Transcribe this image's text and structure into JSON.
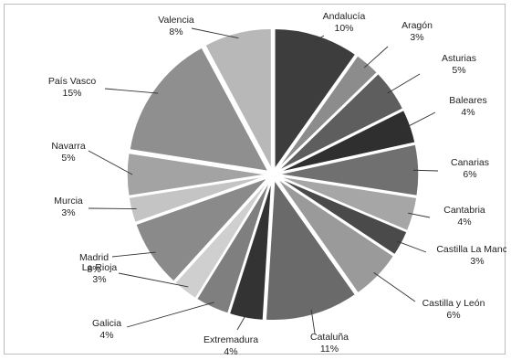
{
  "chart_data": {
    "type": "pie",
    "title": "",
    "slices": [
      {
        "label": "Andalucía",
        "value": 10,
        "display": "10%",
        "color": "#3d3d3d"
      },
      {
        "label": "Aragón",
        "value": 3,
        "display": "3%",
        "color": "#8c8c8c"
      },
      {
        "label": "Asturias",
        "value": 5,
        "display": "5%",
        "color": "#5e5e5e"
      },
      {
        "label": "Baleares",
        "value": 4,
        "display": "4%",
        "color": "#2f2f2f"
      },
      {
        "label": "Canarias",
        "value": 6,
        "display": "6%",
        "color": "#707070"
      },
      {
        "label": "Cantabria",
        "value": 4,
        "display": "4%",
        "color": "#a6a6a6"
      },
      {
        "label": "Castilla La Mancha",
        "value": 3,
        "display": "3%",
        "color": "#4a4a4a"
      },
      {
        "label": "Castilla y León",
        "value": 6,
        "display": "6%",
        "color": "#9a9a9a"
      },
      {
        "label": "Cataluña",
        "value": 11,
        "display": "11%",
        "color": "#6a6a6a"
      },
      {
        "label": "Extremadura",
        "value": 4,
        "display": "4%",
        "color": "#333333"
      },
      {
        "label": "Galicia",
        "value": 4,
        "display": "4%",
        "color": "#7f7f7f"
      },
      {
        "label": "La Rioja",
        "value": 3,
        "display": "3%",
        "color": "#cfcfcf"
      },
      {
        "label": "Madrid",
        "value": 8,
        "display": "8%",
        "color": "#8a8a8a"
      },
      {
        "label": "Murcia",
        "value": 3,
        "display": "3%",
        "color": "#c4c4c4"
      },
      {
        "label": "Navarra",
        "value": 5,
        "display": "5%",
        "color": "#a3a3a3"
      },
      {
        "label": "País Vasco",
        "value": 15,
        "display": "15%",
        "color": "#8f8f8f"
      },
      {
        "label": "Valencia",
        "value": 8,
        "display": "8%",
        "color": "#b8b8b8"
      }
    ]
  }
}
